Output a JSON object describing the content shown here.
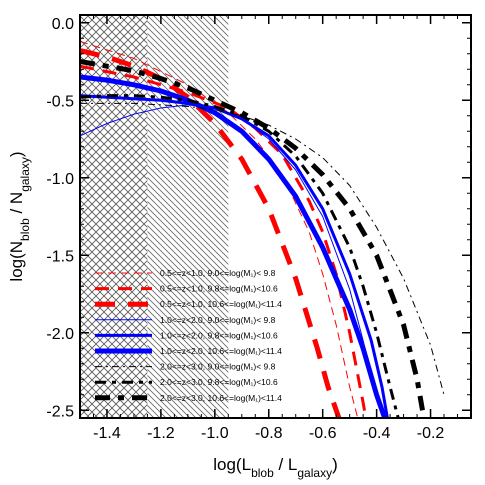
{
  "chart_data": {
    "type": "line",
    "title": "",
    "xlabel": {
      "main": "log(L",
      "sub1": "blob",
      "mid": " / L",
      "sub2": "galaxy",
      "end": ")"
    },
    "ylabel": {
      "main": "log(N",
      "sub1": "blob",
      "mid": " / N",
      "sub2": "galaxy",
      "end": ")"
    },
    "xlim": [
      -1.5,
      -0.05
    ],
    "ylim": [
      -2.55,
      0.05
    ],
    "x_ticks": [
      {
        "value": -1.4,
        "label": "-1.4"
      },
      {
        "value": -1.2,
        "label": "-1.2"
      },
      {
        "value": -1.0,
        "label": "-1.0"
      },
      {
        "value": -0.8,
        "label": "-0.8"
      },
      {
        "value": -0.6,
        "label": "-0.6"
      },
      {
        "value": -0.4,
        "label": "-0.4"
      },
      {
        "value": -0.2,
        "label": "-0.2"
      }
    ],
    "y_ticks": [
      {
        "value": 0.0,
        "label": "0.0"
      },
      {
        "value": -0.5,
        "label": "-0.5"
      },
      {
        "value": -1.0,
        "label": "-1.0"
      },
      {
        "value": -1.5,
        "label": "-1.5"
      },
      {
        "value": -2.0,
        "label": "-2.0"
      },
      {
        "value": -2.5,
        "label": "-2.5"
      }
    ],
    "shaded_regions": [
      {
        "pattern": "crosshatch",
        "x": [
          -1.5,
          -1.25
        ]
      },
      {
        "pattern": "diagonal",
        "x": [
          -1.25,
          -0.95
        ]
      }
    ],
    "legend_position": "bottom-left",
    "series": [
      {
        "name": "0.5<=z<1.0,  9.0<=log(M₁)< 9.8",
        "color": "#ff0000",
        "dash": "dashed",
        "width": 1,
        "x": [
          -1.5,
          -1.3,
          -1.1,
          -0.95,
          -0.85,
          -0.75,
          -0.65,
          -0.6,
          -0.55,
          -0.5,
          -0.47
        ],
        "y": [
          -0.12,
          -0.23,
          -0.4,
          -0.58,
          -0.75,
          -0.98,
          -1.35,
          -1.62,
          -1.95,
          -2.35,
          -2.55
        ]
      },
      {
        "name": "0.5<=z<1.0,  9.8<=log(M₁)<10.6",
        "color": "#ff0000",
        "dash": "dashed",
        "width": 3,
        "x": [
          -1.5,
          -1.3,
          -1.1,
          -0.95,
          -0.85,
          -0.75,
          -0.65,
          -0.6,
          -0.55,
          -0.5,
          -0.45,
          -0.44
        ],
        "y": [
          -0.28,
          -0.35,
          -0.45,
          -0.55,
          -0.68,
          -0.85,
          -1.15,
          -1.35,
          -1.62,
          -2.0,
          -2.45,
          -2.55
        ]
      },
      {
        "name": "0.5<=z<1.0, 10.6<=log(M₁)<11.4",
        "color": "#ff0000",
        "dash": "dashed",
        "width": 5,
        "x": [
          -1.5,
          -1.4,
          -1.3,
          -1.2,
          -1.1,
          -1.0,
          -0.9,
          -0.8,
          -0.7,
          -0.62,
          -0.58,
          -0.55,
          -0.54
        ],
        "y": [
          -0.18,
          -0.22,
          -0.28,
          -0.36,
          -0.48,
          -0.65,
          -0.88,
          -1.2,
          -1.65,
          -2.1,
          -2.35,
          -2.5,
          -2.55
        ]
      },
      {
        "name": "1.0<=z<2.0,  9.0<=log(M₁)< 9.8",
        "color": "#0000ff",
        "dash": "solid",
        "width": 1,
        "x": [
          -1.5,
          -1.4,
          -1.3,
          -1.2,
          -1.1,
          -1.0,
          -0.9,
          -0.8,
          -0.7,
          -0.6,
          -0.5,
          -0.45,
          -0.4,
          -0.37
        ],
        "y": [
          -0.73,
          -0.65,
          -0.59,
          -0.55,
          -0.53,
          -0.55,
          -0.62,
          -0.75,
          -0.95,
          -1.25,
          -1.72,
          -2.05,
          -2.4,
          -2.55
        ]
      },
      {
        "name": "1.0<=z<2.0,  9.8<=log(M₁)<10.6",
        "color": "#0000ff",
        "dash": "solid",
        "width": 3,
        "x": [
          -1.5,
          -1.4,
          -1.3,
          -1.2,
          -1.1,
          -1.0,
          -0.9,
          -0.8,
          -0.7,
          -0.6,
          -0.5,
          -0.42,
          -0.38,
          -0.36
        ],
        "y": [
          -0.47,
          -0.48,
          -0.49,
          -0.5,
          -0.52,
          -0.55,
          -0.62,
          -0.73,
          -0.92,
          -1.2,
          -1.62,
          -2.05,
          -2.35,
          -2.55
        ]
      },
      {
        "name": "1.0<=z<2.0, 10.6<=log(M₁)<11.4",
        "color": "#0000ff",
        "dash": "solid",
        "width": 5,
        "x": [
          -1.5,
          -1.4,
          -1.3,
          -1.2,
          -1.1,
          -1.0,
          -0.9,
          -0.8,
          -0.7,
          -0.6,
          -0.5,
          -0.45,
          -0.4,
          -0.37
        ],
        "y": [
          -0.35,
          -0.37,
          -0.4,
          -0.44,
          -0.5,
          -0.58,
          -0.7,
          -0.88,
          -1.12,
          -1.45,
          -1.85,
          -2.1,
          -2.4,
          -2.55
        ]
      },
      {
        "name": "2.0<=z<3.0,  9.0<=log(M₁)< 9.8",
        "color": "#000000",
        "dash": "dashdot",
        "width": 1,
        "x": [
          -1.5,
          -1.4,
          -1.3,
          -1.2,
          -1.1,
          -1.0,
          -0.9,
          -0.8,
          -0.7,
          -0.6,
          -0.5,
          -0.4,
          -0.3,
          -0.2,
          -0.15
        ],
        "y": [
          -0.52,
          -0.52,
          -0.52,
          -0.53,
          -0.54,
          -0.56,
          -0.6,
          -0.66,
          -0.75,
          -0.87,
          -1.05,
          -1.32,
          -1.65,
          -2.08,
          -2.4
        ]
      },
      {
        "name": "2.0<=z<3.0,  9.8<=log(M₁)<10.6",
        "color": "#000000",
        "dash": "dashdot",
        "width": 3,
        "x": [
          -1.5,
          -1.4,
          -1.3,
          -1.2,
          -1.1,
          -1.0,
          -0.9,
          -0.8,
          -0.7,
          -0.6,
          -0.5,
          -0.45,
          -0.4,
          -0.35,
          -0.32
        ],
        "y": [
          -0.48,
          -0.47,
          -0.47,
          -0.48,
          -0.5,
          -0.54,
          -0.6,
          -0.7,
          -0.86,
          -1.1,
          -1.45,
          -1.7,
          -2.0,
          -2.35,
          -2.55
        ]
      },
      {
        "name": "2.0<=z<3.0, 10.6<=log(M₁)<11.4",
        "color": "#000000",
        "dash": "dashdot",
        "width": 5,
        "x": [
          -1.5,
          -1.4,
          -1.3,
          -1.2,
          -1.1,
          -1.0,
          -0.9,
          -0.8,
          -0.7,
          -0.6,
          -0.5,
          -0.4,
          -0.3,
          -0.25,
          -0.23
        ],
        "y": [
          -0.25,
          -0.28,
          -0.31,
          -0.36,
          -0.42,
          -0.5,
          -0.58,
          -0.68,
          -0.81,
          -0.98,
          -1.2,
          -1.5,
          -1.95,
          -2.3,
          -2.5
        ]
      }
    ]
  }
}
